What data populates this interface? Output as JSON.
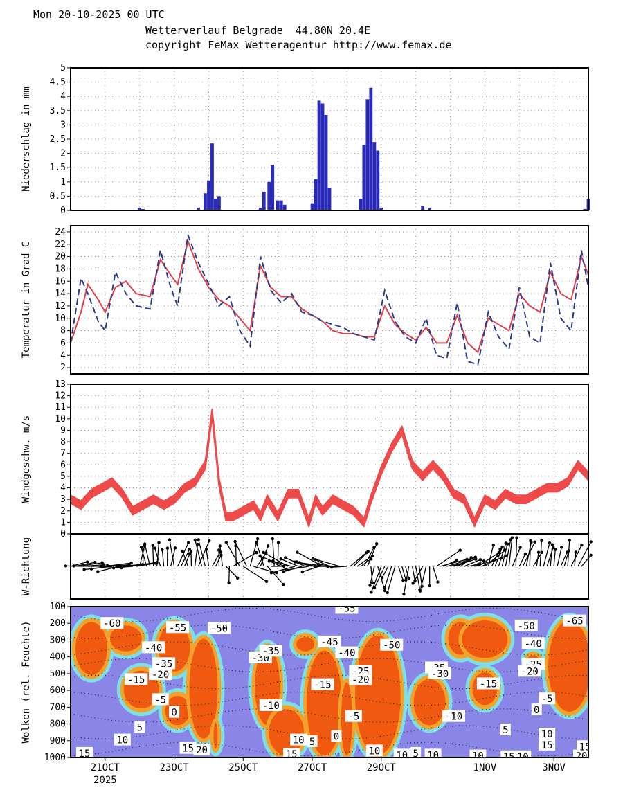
{
  "header": {
    "line1": "Mon 20-10-2025 00 UTC",
    "line2": "Wetterverlauf Belgrade  44.80N 20.4E",
    "line3": "copyright FeMax Wetteragentur http://www.femax.de"
  },
  "x_axis": {
    "date_labels": [
      {
        "text": "21OCT",
        "day": 1
      },
      {
        "text": "23OCT",
        "day": 3
      },
      {
        "text": "25OCT",
        "day": 5
      },
      {
        "text": "27OCT",
        "day": 7
      },
      {
        "text": "29OCT",
        "day": 9
      },
      {
        "text": "1NOV",
        "day": 12
      },
      {
        "text": "3NOV",
        "day": 14
      }
    ],
    "year_label": "2025",
    "range_days": [
      0,
      15
    ]
  },
  "colors": {
    "precip": "#2a2ab8",
    "temp_solid": "#e0404a",
    "temp_dashed": "#2b3a8e",
    "wind": "#ee4a4a",
    "cloud_bg": "#8a86e8",
    "cloud_light": "#7ee0e6",
    "cloud_mid": "#f2a22a",
    "cloud_high": "#f05a10",
    "grid": "#888888"
  },
  "chart_data": [
    {
      "type": "bar",
      "name": "precipitation",
      "ylabel": "Niederschlag in mm",
      "ylim": [
        0,
        5
      ],
      "yticks": [
        "0",
        "0.5",
        "1",
        "1.5",
        "2",
        "2.5",
        "3",
        "3.5",
        "4",
        "4.5",
        "5"
      ],
      "grid": true,
      "x_days": [
        2.0,
        2.1,
        3.7,
        3.9,
        4.0,
        4.1,
        4.2,
        4.3,
        5.5,
        5.6,
        5.75,
        5.85,
        6.0,
        6.1,
        6.2,
        7.0,
        7.1,
        7.2,
        7.3,
        7.4,
        7.5,
        8.4,
        8.5,
        8.6,
        8.7,
        8.8,
        8.9,
        9.0,
        10.2,
        10.4,
        14.9,
        15.0
      ],
      "values": [
        0.1,
        0.05,
        0.1,
        0.6,
        1.05,
        2.35,
        0.4,
        0.5,
        0.1,
        0.65,
        1.0,
        1.6,
        0.35,
        0.35,
        0.2,
        0.25,
        1.1,
        3.85,
        3.75,
        3.35,
        0.8,
        0.4,
        2.3,
        3.9,
        4.3,
        2.4,
        2.1,
        0.1,
        0.15,
        0.1,
        0.05,
        0.4
      ]
    },
    {
      "type": "line",
      "name": "temperature",
      "ylabel": "Temperatur in Grad C",
      "ylim": [
        1,
        25
      ],
      "yticks": [
        "2",
        "4",
        "6",
        "8",
        "10",
        "12",
        "14",
        "16",
        "18",
        "20",
        "22",
        "24"
      ],
      "grid": true,
      "x": [
        0.0,
        0.3,
        0.5,
        0.8,
        1.0,
        1.3,
        1.6,
        1.9,
        2.3,
        2.6,
        2.9,
        3.1,
        3.4,
        3.7,
        4.0,
        4.3,
        4.6,
        4.9,
        5.2,
        5.5,
        5.8,
        6.1,
        6.4,
        6.7,
        7.0,
        7.3,
        7.6,
        7.9,
        8.2,
        8.5,
        8.8,
        9.1,
        9.4,
        9.7,
        10.0,
        10.3,
        10.6,
        10.9,
        11.2,
        11.5,
        11.8,
        12.1,
        12.4,
        12.7,
        13.0,
        13.3,
        13.6,
        13.9,
        14.2,
        14.5,
        14.8,
        15.0
      ],
      "series": [
        {
          "values": [
            6,
            11,
            15.5,
            13,
            11,
            15,
            16,
            14,
            13.5,
            19.5,
            17,
            15.5,
            22.5,
            18,
            15,
            13,
            12,
            10,
            8,
            18.5,
            15,
            13.5,
            13.5,
            11.5,
            10.5,
            9.5,
            8,
            7.5,
            7.5,
            7,
            7,
            12,
            9,
            7.5,
            6.5,
            8.5,
            6,
            6,
            10.5,
            6,
            4.5,
            10,
            9,
            8,
            14,
            12,
            11,
            17.5,
            14,
            13,
            20,
            17
          ]
        },
        {
          "values": [
            6,
            16.5,
            14,
            9.5,
            8,
            17.5,
            14,
            12,
            11.5,
            21,
            15,
            12,
            23.5,
            19,
            15.5,
            12,
            13.5,
            8,
            5.5,
            20,
            14.5,
            12.5,
            14,
            11,
            10.5,
            9.5,
            9,
            8.5,
            7.5,
            7,
            6.5,
            14.5,
            9.5,
            7,
            6,
            10,
            4,
            3.5,
            12.5,
            3,
            2.5,
            11,
            7,
            5,
            15,
            7,
            6,
            19,
            10,
            8,
            21,
            15
          ]
        }
      ]
    },
    {
      "type": "area",
      "name": "wind_speed",
      "ylabel": "Windgeschw. m/s",
      "ylim": [
        0,
        13
      ],
      "yticks": [
        "0",
        "1",
        "2",
        "3",
        "4",
        "5",
        "6",
        "7",
        "8",
        "9",
        "10",
        "11",
        "12",
        "13"
      ],
      "grid": true,
      "x": [
        0.0,
        0.3,
        0.6,
        0.9,
        1.2,
        1.5,
        1.8,
        2.1,
        2.4,
        2.7,
        3.0,
        3.3,
        3.6,
        3.9,
        4.1,
        4.3,
        4.5,
        4.7,
        5.0,
        5.3,
        5.5,
        5.7,
        6.0,
        6.3,
        6.6,
        6.9,
        7.1,
        7.3,
        7.6,
        7.9,
        8.2,
        8.5,
        8.7,
        9.0,
        9.3,
        9.6,
        9.9,
        10.2,
        10.5,
        10.8,
        11.1,
        11.4,
        11.7,
        12.0,
        12.3,
        12.6,
        12.9,
        13.2,
        13.5,
        13.8,
        14.1,
        14.4,
        14.7,
        15.0
      ],
      "values": [
        3.0,
        2.5,
        3.5,
        4.0,
        4.5,
        3.5,
        2.0,
        2.5,
        3.0,
        2.5,
        3.0,
        4.0,
        4.5,
        6.0,
        10.5,
        4.5,
        1.5,
        1.5,
        2.0,
        2.5,
        1.5,
        3.0,
        1.5,
        3.5,
        3.5,
        1.0,
        3.0,
        2.0,
        3.0,
        2.5,
        2.0,
        1.0,
        3.0,
        5.5,
        7.5,
        9.0,
        6.0,
        5.0,
        6.0,
        5.0,
        3.5,
        3.0,
        1.0,
        3.0,
        2.5,
        3.5,
        3.0,
        3.0,
        3.5,
        4.0,
        4.0,
        4.5,
        6.0,
        5.0
      ],
      "band_half_width": 0.35
    },
    {
      "type": "scatter",
      "name": "wind_direction",
      "ylabel": "W-Richtung",
      "note": "wind direction arrows"
    },
    {
      "type": "heatmap",
      "name": "clouds",
      "ylabel": "Wolken (rel. Feuchte)",
      "ylim": [
        1000,
        100
      ],
      "yticks": [
        "100",
        "200",
        "300",
        "400",
        "500",
        "600",
        "700",
        "800",
        "900",
        "1000"
      ],
      "contour_labels": [
        {
          "text": "-60",
          "day": 1.2,
          "p": 200
        },
        {
          "text": "-55",
          "day": 3.1,
          "p": 225
        },
        {
          "text": "-50",
          "day": 4.3,
          "p": 230
        },
        {
          "text": "-40",
          "day": 2.4,
          "p": 345
        },
        {
          "text": "-35",
          "day": 2.7,
          "p": 440
        },
        {
          "text": "-30",
          "day": 5.5,
          "p": 405
        },
        {
          "text": "-35",
          "day": 5.8,
          "p": 365
        },
        {
          "text": "-15",
          "day": 1.9,
          "p": 535
        },
        {
          "text": "-20",
          "day": 2.6,
          "p": 505
        },
        {
          "text": "-5",
          "day": 2.6,
          "p": 655
        },
        {
          "text": "0",
          "day": 3.0,
          "p": 730
        },
        {
          "text": "-10",
          "day": 5.8,
          "p": 690
        },
        {
          "text": "5",
          "day": 2.0,
          "p": 820
        },
        {
          "text": "10",
          "day": 1.5,
          "p": 895
        },
        {
          "text": "15",
          "day": 0.4,
          "p": 975
        },
        {
          "text": "15",
          "day": 3.4,
          "p": 945
        },
        {
          "text": "20",
          "day": 3.8,
          "p": 955
        },
        {
          "text": "10",
          "day": 6.6,
          "p": 895
        },
        {
          "text": "15",
          "day": 6.4,
          "p": 980
        },
        {
          "text": "5",
          "day": 7.0,
          "p": 905
        },
        {
          "text": "-55",
          "day": 8.0,
          "p": 110
        },
        {
          "text": "-45",
          "day": 7.5,
          "p": 310
        },
        {
          "text": "-40",
          "day": 8.0,
          "p": 375
        },
        {
          "text": "-50",
          "day": 9.3,
          "p": 330
        },
        {
          "text": "-25",
          "day": 8.4,
          "p": 485
        },
        {
          "text": "-20",
          "day": 8.4,
          "p": 535
        },
        {
          "text": "-15",
          "day": 7.3,
          "p": 565
        },
        {
          "text": "-5",
          "day": 8.2,
          "p": 755
        },
        {
          "text": "0",
          "day": 7.7,
          "p": 875
        },
        {
          "text": "10",
          "day": 8.8,
          "p": 960
        },
        {
          "text": "10",
          "day": 9.6,
          "p": 985
        },
        {
          "text": "5",
          "day": 10.0,
          "p": 975
        },
        {
          "text": "10",
          "day": 10.5,
          "p": 985
        },
        {
          "text": "-35",
          "day": 10.6,
          "p": 465
        },
        {
          "text": "-30",
          "day": 10.7,
          "p": 500
        },
        {
          "text": "-10",
          "day": 11.1,
          "p": 755
        },
        {
          "text": "-15",
          "day": 12.1,
          "p": 560
        },
        {
          "text": "5",
          "day": 12.6,
          "p": 835
        },
        {
          "text": "10",
          "day": 11.8,
          "p": 990
        },
        {
          "text": "15",
          "day": 12.7,
          "p": 995
        },
        {
          "text": "10",
          "day": 13.1,
          "p": 995
        },
        {
          "text": "-50",
          "day": 13.2,
          "p": 215
        },
        {
          "text": "-40",
          "day": 13.4,
          "p": 320
        },
        {
          "text": "-25",
          "day": 13.4,
          "p": 445
        },
        {
          "text": "-20",
          "day": 13.3,
          "p": 485
        },
        {
          "text": "-5",
          "day": 13.8,
          "p": 650
        },
        {
          "text": "0",
          "day": 13.5,
          "p": 715
        },
        {
          "text": "10",
          "day": 13.8,
          "p": 860
        },
        {
          "text": "15",
          "day": 13.8,
          "p": 925
        },
        {
          "text": "-65",
          "day": 14.6,
          "p": 185
        },
        {
          "text": "20",
          "day": 14.8,
          "p": 990
        },
        {
          "text": "15",
          "day": 14.9,
          "p": 935
        }
      ]
    }
  ]
}
